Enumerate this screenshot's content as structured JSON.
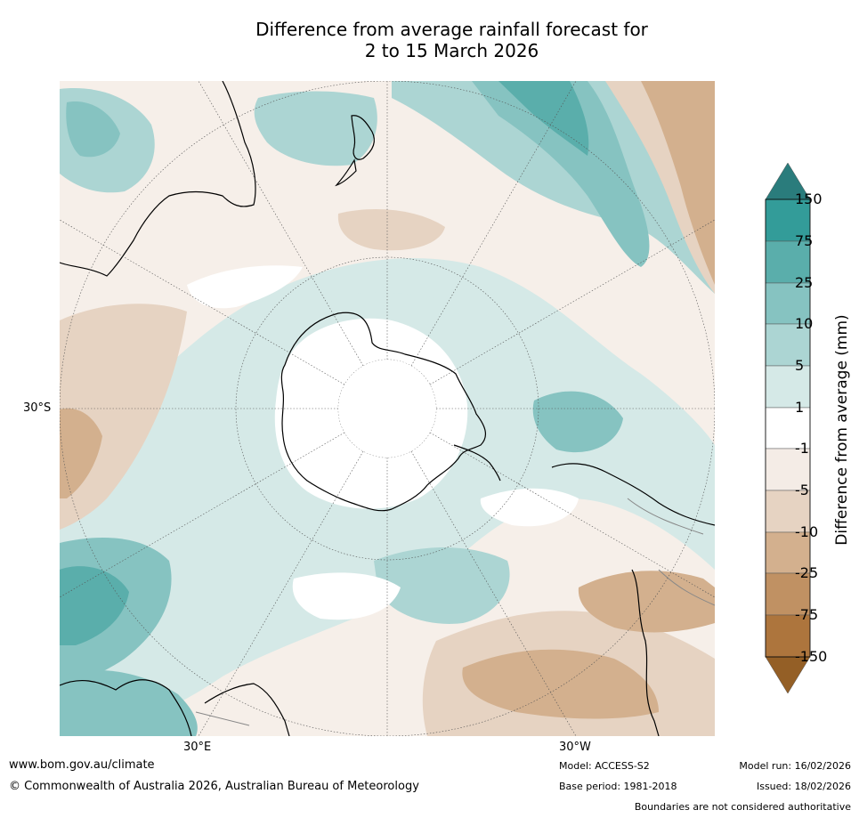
{
  "title": {
    "line1": "Difference from average rainfall forecast for",
    "line2": "2 to 15 March 2026"
  },
  "map": {
    "latitude_labels": [
      "30°S"
    ],
    "longitude_labels": [
      "30°E",
      "30°W"
    ]
  },
  "colorbar": {
    "title": "Difference from average (mm)",
    "tick_labels": [
      "150",
      "75",
      "25",
      "10",
      "5",
      "1",
      "-1",
      "-5",
      "-10",
      "-25",
      "-75",
      "-150"
    ],
    "bins": [
      {
        "label": "> 150",
        "color": "#2a7c7c"
      },
      {
        "label": "75 to 150",
        "color": "#339c99"
      },
      {
        "label": "25 to 75",
        "color": "#5aaeab"
      },
      {
        "label": "10 to 25",
        "color": "#86c3c1"
      },
      {
        "label": "5 to 10",
        "color": "#acd5d3"
      },
      {
        "label": "1 to 5",
        "color": "#d5e9e7"
      },
      {
        "label": "-1 to 1",
        "color": "#ffffff"
      },
      {
        "label": "-5 to -1",
        "color": "#f4ece6"
      },
      {
        "label": "-10 to -5",
        "color": "#e6d3c2"
      },
      {
        "label": "-25 to -10",
        "color": "#d3b08e"
      },
      {
        "label": "-75 to -25",
        "color": "#c09163"
      },
      {
        "label": "-150 to -75",
        "color": "#ad753d"
      },
      {
        "label": "< -150",
        "color": "#945f26"
      }
    ]
  },
  "footer": {
    "website": "www.bom.gov.au/climate",
    "copyright": "© Commonwealth of Australia 2026, Australian Bureau of Meteorology",
    "model": "Model: ACCESS-S2",
    "base_period": "Base period: 1981-2018",
    "model_run": "Model run: 16/02/2026",
    "issued": "Issued: 18/02/2026",
    "disclaimer": "Boundaries are not considered authoritative"
  }
}
